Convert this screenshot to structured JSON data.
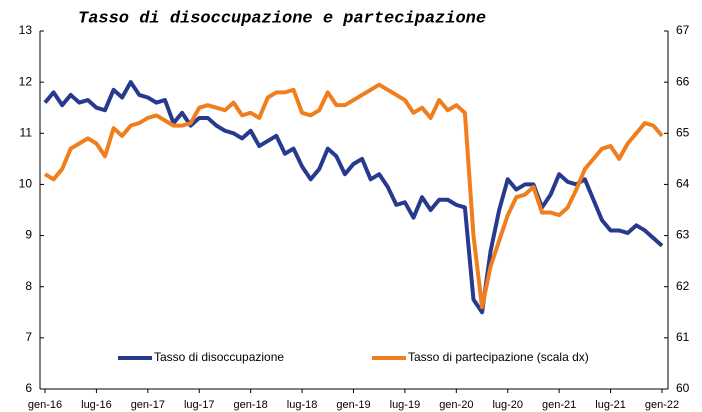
{
  "chart_data": {
    "type": "line",
    "title": "Tasso di disoccupazione e partecipazione",
    "categories": [
      "gen-16",
      null,
      null,
      null,
      null,
      null,
      "lug-16",
      null,
      null,
      null,
      null,
      null,
      "gen-17",
      null,
      null,
      null,
      null,
      null,
      "lug-17",
      null,
      null,
      null,
      null,
      null,
      "gen-18",
      null,
      null,
      null,
      null,
      null,
      "lug-18",
      null,
      null,
      null,
      null,
      null,
      "gen-19",
      null,
      null,
      null,
      null,
      null,
      "lug-19",
      null,
      null,
      null,
      null,
      null,
      "gen-20",
      null,
      null,
      null,
      null,
      null,
      "lug-20",
      null,
      null,
      null,
      null,
      null,
      "gen-21",
      null,
      null,
      null,
      null,
      null,
      "lug-21",
      null,
      null,
      null,
      null,
      null,
      "gen-22"
    ],
    "series": [
      {
        "name": "Tasso di disoccupazione",
        "color": "#283a8e",
        "values": [
          11.6,
          11.8,
          11.55,
          11.75,
          11.6,
          11.65,
          11.5,
          11.45,
          11.85,
          11.7,
          12.0,
          11.75,
          11.7,
          11.6,
          11.65,
          11.2,
          11.4,
          11.15,
          11.3,
          11.3,
          11.15,
          11.05,
          11.0,
          10.9,
          11.05,
          10.75,
          10.85,
          10.95,
          10.6,
          10.7,
          10.35,
          10.1,
          10.3,
          10.7,
          10.55,
          10.2,
          10.4,
          10.5,
          10.1,
          10.2,
          9.95,
          9.6,
          9.65,
          9.35,
          9.75,
          9.5,
          9.7,
          9.7,
          9.6,
          9.55,
          7.75,
          7.5,
          8.7,
          9.5,
          10.1,
          9.9,
          10.0,
          10.0,
          9.55,
          9.8,
          10.2,
          10.05,
          10.0,
          10.1,
          9.7,
          9.3,
          9.1,
          9.1,
          9.05,
          9.2,
          9.1,
          8.95,
          8.8
        ]
      },
      {
        "name": "Tasso di partecipazione (scala dx)",
        "color": "#f07e1c",
        "axis": "y2",
        "values": [
          64.2,
          64.1,
          64.3,
          64.7,
          64.8,
          64.9,
          64.8,
          64.55,
          65.1,
          64.95,
          65.15,
          65.2,
          65.3,
          65.35,
          65.25,
          65.15,
          65.15,
          65.2,
          65.5,
          65.55,
          65.5,
          65.45,
          65.6,
          65.35,
          65.4,
          65.3,
          65.7,
          65.8,
          65.8,
          65.85,
          65.4,
          65.35,
          65.45,
          65.8,
          65.55,
          65.55,
          65.65,
          65.75,
          65.85,
          65.95,
          65.85,
          65.75,
          65.65,
          65.4,
          65.5,
          65.3,
          65.65,
          65.45,
          65.55,
          65.4,
          63.0,
          61.6,
          62.4,
          62.9,
          63.4,
          63.75,
          63.8,
          63.95,
          63.45,
          63.45,
          63.4,
          63.55,
          63.9,
          64.3,
          64.5,
          64.7,
          64.75,
          64.5,
          64.8,
          65.0,
          65.2,
          65.15,
          64.95
        ]
      }
    ],
    "ylim": [
      6,
      13
    ],
    "yticks": [
      6,
      7,
      8,
      9,
      10,
      11,
      12,
      13
    ],
    "y2lim": [
      60,
      67
    ],
    "y2ticks": [
      60,
      61,
      62,
      63,
      64,
      65,
      66,
      67
    ],
    "legend": "bottom"
  }
}
